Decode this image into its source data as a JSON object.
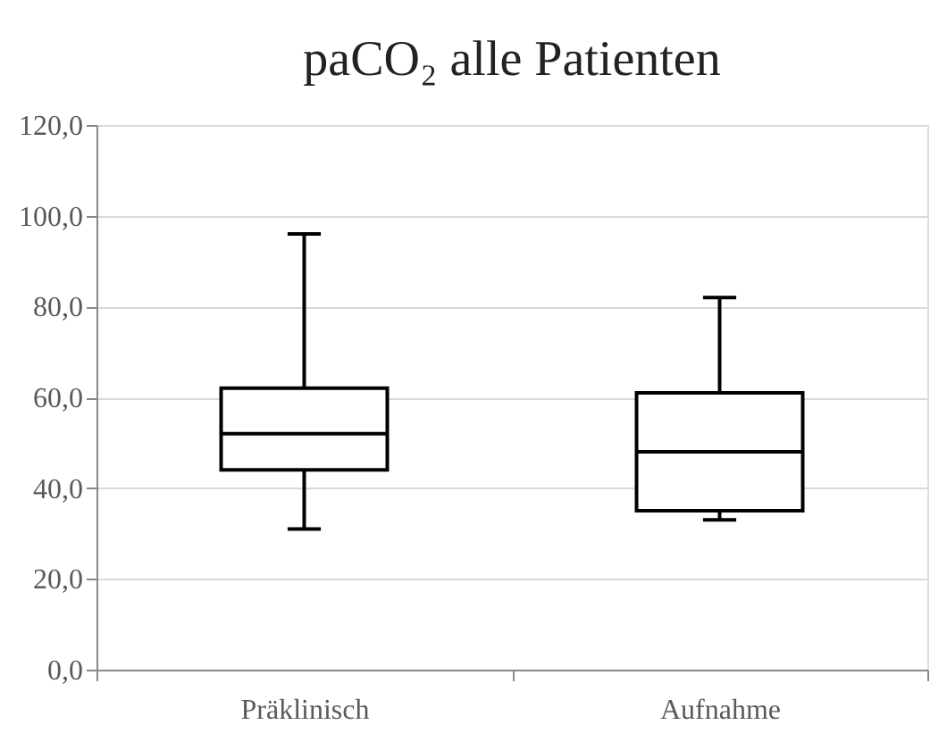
{
  "chart_data": {
    "type": "box",
    "title": "paCO₂ alle Patienten",
    "categories": [
      "Präklinisch",
      "Aufnahme"
    ],
    "boxes": [
      {
        "low": 31,
        "q1": 44,
        "median": 52,
        "q3": 62,
        "high": 96
      },
      {
        "low": 33,
        "q1": 35,
        "median": 48,
        "q3": 61,
        "high": 82
      }
    ],
    "color": "#000000",
    "ylim": [
      0,
      120
    ],
    "yticks": [
      {
        "value": 0,
        "label": "0,0"
      },
      {
        "value": 20,
        "label": "20,0"
      },
      {
        "value": 40,
        "label": "40,0"
      },
      {
        "value": 60,
        "label": "60,0"
      },
      {
        "value": 80,
        "label": "80,0"
      },
      {
        "value": 100,
        "label": "100,0"
      },
      {
        "value": 120,
        "label": "120,0"
      }
    ],
    "grid": "y"
  }
}
